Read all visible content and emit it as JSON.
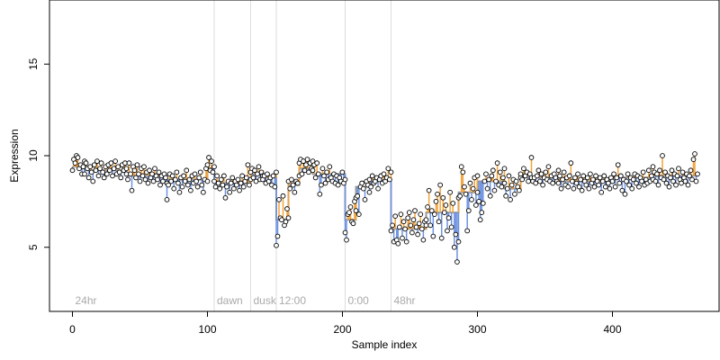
{
  "chart_data": {
    "type": "scatter",
    "title": "",
    "xlabel": "Sample index",
    "ylabel": "Expression",
    "xlim": [
      -17,
      479
    ],
    "ylim": [
      1.5,
      18.5
    ],
    "x_ticks": [
      0,
      100,
      200,
      300,
      400
    ],
    "y_ticks": [
      5,
      10,
      15
    ],
    "grid": false,
    "legend": "none",
    "colors": {
      "points_stroke": "#000000",
      "points_fill": "#ffffff",
      "segment_up": "#f2a33a",
      "segment_down": "#6f93e0",
      "fitted_line": "#999999",
      "marker_lines": "#dddddd",
      "marker_text": "#aaaaaa"
    },
    "vertical_markers": [
      {
        "x": 0,
        "label": "24hr"
      },
      {
        "x": 105,
        "label": "dawn"
      },
      {
        "x": 132,
        "label": "dusk"
      },
      {
        "x": 151,
        "label": "12:00"
      },
      {
        "x": 202,
        "label": "0:00"
      },
      {
        "x": 236,
        "label": "48hr"
      }
    ],
    "segments": [
      {
        "x0": 0,
        "x1": 9,
        "y": 9.4
      },
      {
        "x0": 9,
        "x1": 40,
        "y": 9.2
      },
      {
        "x0": 40,
        "x1": 70,
        "y": 8.9
      },
      {
        "x0": 70,
        "x1": 100,
        "y": 8.7
      },
      {
        "x0": 100,
        "x1": 105,
        "y": 9.3
      },
      {
        "x0": 105,
        "x1": 132,
        "y": 8.5
      },
      {
        "x0": 132,
        "x1": 141,
        "y": 9.0
      },
      {
        "x0": 141,
        "x1": 151,
        "y": 8.8
      },
      {
        "x0": 151,
        "x1": 160,
        "y": 6.5
      },
      {
        "x0": 160,
        "x1": 168,
        "y": 8.4
      },
      {
        "x0": 168,
        "x1": 178,
        "y": 9.3
      },
      {
        "x0": 178,
        "x1": 202,
        "y": 9.0
      },
      {
        "x0": 202,
        "x1": 210,
        "y": 6.5
      },
      {
        "x0": 210,
        "x1": 220,
        "y": 8.3
      },
      {
        "x0": 220,
        "x1": 236,
        "y": 8.7
      },
      {
        "x0": 236,
        "x1": 262,
        "y": 6.0
      },
      {
        "x0": 262,
        "x1": 286,
        "y": 6.9
      },
      {
        "x0": 286,
        "x1": 300,
        "y": 8.0
      },
      {
        "x0": 300,
        "x1": 320,
        "y": 8.6
      },
      {
        "x0": 320,
        "x1": 332,
        "y": 8.2
      },
      {
        "x0": 332,
        "x1": 340,
        "y": 8.8
      },
      {
        "x0": 340,
        "x1": 360,
        "y": 8.8
      },
      {
        "x0": 360,
        "x1": 400,
        "y": 8.6
      },
      {
        "x0": 400,
        "x1": 430,
        "y": 8.8
      },
      {
        "x0": 430,
        "x1": 463,
        "y": 8.9
      }
    ],
    "series_y_by_block": [
      {
        "x0": 0,
        "x1": 9,
        "values": [
          9.2,
          9.8,
          9.6,
          10.0,
          9.9,
          9.3,
          9.5,
          9.0,
          9.4,
          9.7
        ]
      },
      {
        "x0": 9,
        "x1": 40,
        "values": [
          9.0,
          9.6,
          9.3,
          8.8,
          9.4,
          9.1,
          8.6,
          9.5,
          9.2,
          9.7,
          8.9,
          9.3,
          9.6,
          9.1,
          8.8,
          9.4,
          9.0,
          9.5,
          9.2,
          9.6,
          8.9,
          9.3,
          9.7,
          9.0,
          9.4,
          9.1,
          8.8,
          9.5,
          9.2,
          9.6,
          9.0
        ]
      },
      {
        "x0": 40,
        "x1": 70,
        "values": [
          9.3,
          8.7,
          9.6,
          9.0,
          8.1,
          9.4,
          9.2,
          8.8,
          9.5,
          9.0,
          8.6,
          9.3,
          8.9,
          9.4,
          8.7,
          9.1,
          8.5,
          9.2,
          8.8,
          9.0,
          8.6,
          9.3,
          8.9,
          8.7,
          9.1,
          8.4,
          8.9,
          8.6,
          9.0,
          8.8,
          8.5
        ]
      },
      {
        "x0": 70,
        "x1": 100,
        "values": [
          7.6,
          8.4,
          9.0,
          8.6,
          8.9,
          8.2,
          8.7,
          9.1,
          8.5,
          8.0,
          8.8,
          8.3,
          8.9,
          8.6,
          9.2,
          8.4,
          8.7,
          8.1,
          8.9,
          8.5,
          9.0,
          8.6,
          8.3,
          8.8,
          9.1,
          8.4,
          8.0,
          8.7,
          9.3,
          8.6
        ]
      },
      {
        "x0": 100,
        "x1": 105,
        "values": [
          9.5,
          9.9,
          9.2,
          9.7,
          9.1,
          9.4
        ]
      },
      {
        "x0": 105,
        "x1": 132,
        "values": [
          8.6,
          8.3,
          8.9,
          8.5,
          8.2,
          8.7,
          8.4,
          8.9,
          7.7,
          8.3,
          8.6,
          8.0,
          8.5,
          8.8,
          8.2,
          8.6,
          8.4,
          8.7,
          8.1,
          8.5,
          8.9,
          8.3,
          8.6,
          8.8,
          9.5,
          8.4,
          8.7
        ]
      },
      {
        "x0": 132,
        "x1": 141,
        "values": [
          9.1,
          9.3,
          8.8,
          9.2,
          8.6,
          9.0,
          9.4,
          8.7,
          9.1,
          8.9
        ]
      },
      {
        "x0": 141,
        "x1": 151,
        "values": [
          8.7,
          8.9,
          8.5,
          9.0,
          8.6,
          8.8,
          8.4,
          8.9,
          8.3,
          9.1
        ]
      },
      {
        "x0": 151,
        "x1": 160,
        "values": [
          5.1,
          5.6,
          7.6,
          6.6,
          6.5,
          7.8,
          6.2,
          6.4,
          7.1,
          6.6
        ]
      },
      {
        "x0": 160,
        "x1": 168,
        "values": [
          8.6,
          8.2,
          8.7,
          8.4,
          8.0,
          8.6,
          8.5,
          8.9
        ]
      },
      {
        "x0": 168,
        "x1": 178,
        "values": [
          9.6,
          9.8,
          9.0,
          9.7,
          9.2,
          9.5,
          9.8,
          9.1,
          9.6,
          9.3,
          9.7
        ]
      },
      {
        "x0": 178,
        "x1": 202,
        "values": [
          9.2,
          9.5,
          8.8,
          9.6,
          9.0,
          7.9,
          8.4,
          9.3,
          8.9,
          8.5,
          9.1,
          8.7,
          9.4,
          8.8,
          8.6,
          9.0,
          8.5,
          8.9,
          8.4,
          8.8,
          8.6,
          9.1,
          8.5,
          8.7
        ]
      },
      {
        "x0": 202,
        "x1": 210,
        "values": [
          5.8,
          5.4,
          6.8,
          6.9,
          7.2,
          6.4,
          6.3,
          7.5,
          7.0
        ]
      },
      {
        "x0": 210,
        "x1": 220,
        "values": [
          7.7,
          7.8,
          6.8,
          8.3,
          8.5,
          8.2,
          7.6,
          8.6,
          8.4,
          8.0
        ]
      },
      {
        "x0": 220,
        "x1": 236,
        "values": [
          8.7,
          8.3,
          8.9,
          8.5,
          8.6,
          8.8,
          8.2,
          8.7,
          8.9,
          8.5,
          9.0,
          8.6,
          8.8,
          9.3,
          8.7,
          9.1
        ]
      },
      {
        "x0": 236,
        "x1": 262,
        "values": [
          5.9,
          6.2,
          5.3,
          6.7,
          5.4,
          5.2,
          6.1,
          6.8,
          5.5,
          6.4,
          6.0,
          5.3,
          6.6,
          6.9,
          6.2,
          5.8,
          6.5,
          7.0,
          6.1,
          5.7,
          6.3,
          6.8,
          6.0,
          5.4,
          6.4,
          6.2
        ]
      },
      {
        "x0": 262,
        "x1": 286,
        "values": [
          6.5,
          7.2,
          8.1,
          6.2,
          7.0,
          5.6,
          6.8,
          7.5,
          7.9,
          6.4,
          8.4,
          5.5,
          7.7,
          6.9,
          7.3,
          5.9,
          6.6,
          8.0,
          6.1,
          7.4,
          5.0,
          5.7,
          4.2,
          5.3
        ]
      },
      {
        "x0": 286,
        "x1": 300,
        "values": [
          7.7,
          7.8,
          9.4,
          9.1,
          8.3,
          7.9,
          5.9,
          7.0,
          8.5,
          7.6,
          8.2,
          8.8,
          7.3,
          8.9
        ]
      },
      {
        "x0": 300,
        "x1": 320,
        "values": [
          8.0,
          7.5,
          6.5,
          6.9,
          7.4,
          8.6,
          9.0,
          8.2,
          8.7,
          7.8,
          8.9,
          9.2,
          8.1,
          8.6,
          9.6,
          8.4,
          9.1,
          8.3,
          8.8,
          9.3
        ]
      },
      {
        "x0": 320,
        "x1": 332,
        "values": [
          8.5,
          7.8,
          8.2,
          8.9,
          7.6,
          8.4,
          8.7,
          7.9,
          8.6,
          8.3,
          8.1,
          8.8
        ]
      },
      {
        "x0": 332,
        "x1": 340,
        "values": [
          9.0,
          8.7,
          9.3,
          8.9,
          9.1,
          8.6,
          9.0,
          8.8
        ]
      },
      {
        "x0": 340,
        "x1": 360,
        "values": [
          9.9,
          8.6,
          8.8,
          8.5,
          8.9,
          9.2,
          8.6,
          9.0,
          8.4,
          8.8,
          9.1,
          8.7,
          9.4,
          8.6,
          8.9,
          8.5,
          9.0,
          8.8,
          8.6,
          9.2
        ]
      },
      {
        "x0": 360,
        "x1": 400,
        "values": [
          8.5,
          8.9,
          8.2,
          8.7,
          9.1,
          8.4,
          8.8,
          8.3,
          8.9,
          9.6,
          8.6,
          8.2,
          8.8,
          8.5,
          9.0,
          8.3,
          8.7,
          8.1,
          8.9,
          8.6,
          8.4,
          8.8,
          8.2,
          9.0,
          8.5,
          8.7,
          8.3,
          8.9,
          8.6,
          8.4,
          8.8,
          8.0,
          8.6,
          8.9,
          8.3,
          8.7,
          8.5,
          8.2,
          8.8,
          8.6
        ]
      },
      {
        "x0": 400,
        "x1": 430,
        "values": [
          8.6,
          9.0,
          8.3,
          8.8,
          9.5,
          8.5,
          8.9,
          8.1,
          8.7,
          7.9,
          8.6,
          9.0,
          8.4,
          8.8,
          8.2,
          8.7,
          9.0,
          8.5,
          8.9,
          8.3,
          8.8,
          8.6,
          9.1,
          8.4,
          8.7,
          8.5,
          9.2,
          8.6,
          8.9,
          8.7
        ]
      },
      {
        "x0": 430,
        "x1": 463,
        "values": [
          9.4,
          9.1,
          8.6,
          9.0,
          8.4,
          9.2,
          8.8,
          10.0,
          8.7,
          9.1,
          8.5,
          8.9,
          8.3,
          8.8,
          9.2,
          8.6,
          9.0,
          8.4,
          8.9,
          9.3,
          8.7,
          8.5,
          9.1,
          8.8,
          8.6,
          9.0,
          8.4,
          8.9,
          9.2,
          8.7,
          9.8,
          10.1,
          8.6,
          9.0
        ]
      }
    ]
  }
}
